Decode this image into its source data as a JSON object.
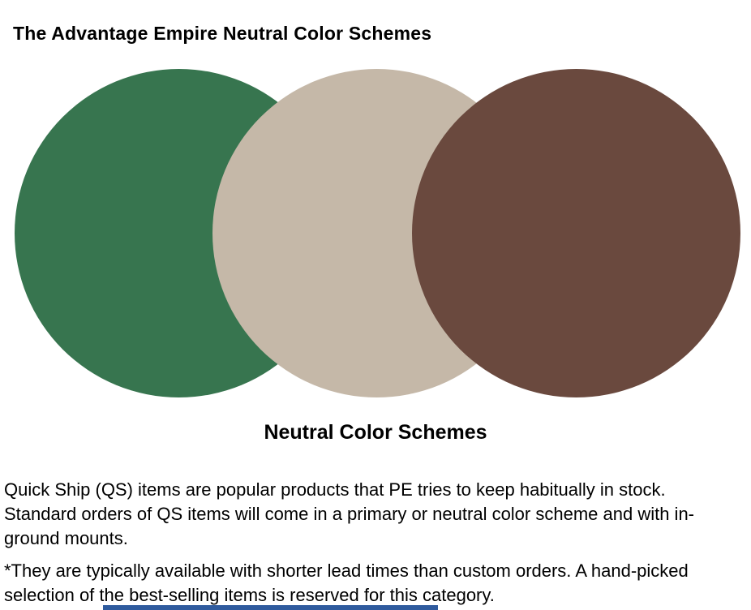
{
  "page": {
    "title": {
      "prefix": "The Advantage Empire ",
      "suffix": "Neutral Color Schemes"
    },
    "caption": "Neutral Color Schemes",
    "paragraphs": {
      "p1": "Quick Ship (QS) items are popular products that PE tries to keep habitually in stock.\nStandard orders of QS items will come in a primary or neutral color scheme and with in-\nground mounts.",
      "p2": "*They are typically available with shorter lead times than custom orders. A hand-picked\nselection of the best-selling items is reserved for this category."
    },
    "swatches": [
      {
        "name": "green",
        "color": "#37754F"
      },
      {
        "name": "beige",
        "color": "#C5B8A8"
      },
      {
        "name": "brown",
        "color": "#6A493E"
      }
    ],
    "colors": {
      "green": "#37754F",
      "beige": "#C5B8A8",
      "brown": "#6A493E",
      "bottom_bar": "#2F5B9E",
      "text": "#000000",
      "background": "#FFFFFF"
    }
  }
}
